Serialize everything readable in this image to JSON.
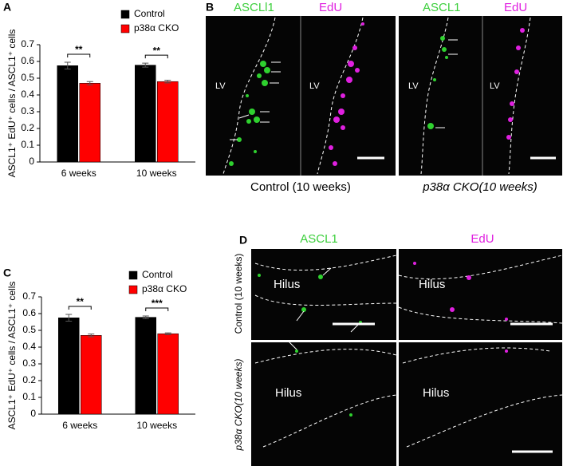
{
  "chart_data": [
    {
      "type": "bar",
      "ylabel": "ASCL1⁺ EdU⁺ cells / ASCL1⁺ cells",
      "categories": [
        "6 weeks",
        "10 weeks"
      ],
      "series": [
        {
          "name": "Control",
          "color": "#000000",
          "values": [
            0.575,
            0.578
          ],
          "errors": [
            0.02,
            0.012
          ]
        },
        {
          "name": "p38α CKO",
          "color": "#ff0000",
          "values": [
            0.47,
            0.48
          ],
          "errors": [
            0.01,
            0.008
          ]
        }
      ],
      "ylim": [
        0,
        0.7
      ],
      "yticks": [
        0,
        0.1,
        0.2,
        0.3,
        0.4,
        0.5,
        0.6,
        0.7
      ],
      "annotations": [
        "**",
        "**"
      ]
    },
    {
      "type": "bar",
      "ylabel": "ASCL1⁺ EdU⁺ cells / ASCL1⁺ cells",
      "categories": [
        "6 weeks",
        "10 weeks"
      ],
      "series": [
        {
          "name": "Control",
          "color": "#000000",
          "values": [
            0.575,
            0.578
          ],
          "errors": [
            0.02,
            0.008
          ]
        },
        {
          "name": "p38α CKO",
          "color": "#ff0000",
          "values": [
            0.47,
            0.48
          ],
          "errors": [
            0.008,
            0.005
          ]
        }
      ],
      "ylim": [
        0,
        0.7
      ],
      "yticks": [
        0,
        0.1,
        0.2,
        0.3,
        0.4,
        0.5,
        0.6,
        0.7
      ],
      "annotations": [
        "**",
        "***"
      ]
    }
  ],
  "panel_labels": [
    "A",
    "B",
    "C",
    "D"
  ],
  "panel_b": {
    "control": {
      "stains": [
        "ASCLl1",
        "EdU"
      ],
      "regions": [
        "LV",
        "LV"
      ],
      "caption": "Control (10 weeks)"
    },
    "cko": {
      "stains": [
        "ASCL1",
        "EdU"
      ],
      "regions": [
        "LV",
        "LV"
      ],
      "caption": "p38α CKO(10  weeks)"
    }
  },
  "panel_d": {
    "stains": [
      "ASCL1",
      "EdU"
    ],
    "rows": [
      {
        "label": "Control (10 weeks)",
        "regions": [
          "Hilus",
          "Hilus"
        ]
      },
      {
        "label": "p38α CKO(10 weeks)",
        "regions": [
          "Hilus",
          "Hilus"
        ]
      }
    ]
  }
}
